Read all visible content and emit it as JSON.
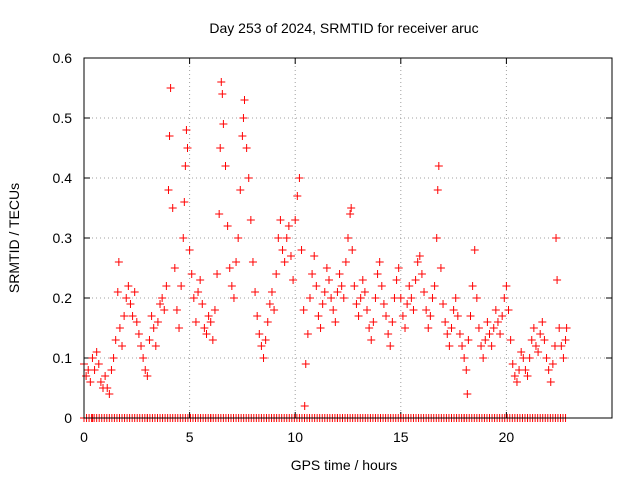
{
  "chart_data": {
    "type": "scatter",
    "title": "Day 253 of 2024, SRMTID for receiver aruc",
    "xlabel": "GPS time / hours",
    "ylabel": "SRMTID / TECUs",
    "xlim": [
      0,
      25
    ],
    "ylim": [
      0,
      0.6
    ],
    "xticks": [
      0,
      5,
      10,
      15,
      20
    ],
    "yticks": [
      0,
      0.1,
      0.2,
      0.3,
      0.4,
      0.5,
      0.6
    ],
    "xtick_labels": [
      "0",
      "5",
      "10",
      "15",
      "20"
    ],
    "ytick_labels": [
      "0",
      "0.1",
      "0.2",
      "0.3",
      "0.4",
      "0.5",
      "0.6"
    ],
    "grid": true,
    "marker": "+",
    "color": "#ff0000",
    "series": [
      {
        "name": "SRMTID",
        "points": [
          [
            0.0,
            0.09
          ],
          [
            0.1,
            0.07
          ],
          [
            0.2,
            0.08
          ],
          [
            0.3,
            0.06
          ],
          [
            0.4,
            0.1
          ],
          [
            0.5,
            0.08
          ],
          [
            0.6,
            0.11
          ],
          [
            0.7,
            0.09
          ],
          [
            0.8,
            0.06
          ],
          [
            0.9,
            0.05
          ],
          [
            1.0,
            0.07
          ],
          [
            1.1,
            0.05
          ],
          [
            1.2,
            0.04
          ],
          [
            1.3,
            0.08
          ],
          [
            1.4,
            0.1
          ],
          [
            1.5,
            0.13
          ],
          [
            1.6,
            0.21
          ],
          [
            1.65,
            0.26
          ],
          [
            1.7,
            0.15
          ],
          [
            1.8,
            0.12
          ],
          [
            1.9,
            0.17
          ],
          [
            2.0,
            0.2
          ],
          [
            2.1,
            0.22
          ],
          [
            2.2,
            0.19
          ],
          [
            2.3,
            0.17
          ],
          [
            2.4,
            0.21
          ],
          [
            2.5,
            0.16
          ],
          [
            2.6,
            0.14
          ],
          [
            2.7,
            0.12
          ],
          [
            2.8,
            0.1
          ],
          [
            2.9,
            0.08
          ],
          [
            3.0,
            0.07
          ],
          [
            3.1,
            0.13
          ],
          [
            3.2,
            0.17
          ],
          [
            3.3,
            0.15
          ],
          [
            3.4,
            0.12
          ],
          [
            3.5,
            0.16
          ],
          [
            3.6,
            0.19
          ],
          [
            3.7,
            0.2
          ],
          [
            3.8,
            0.18
          ],
          [
            3.9,
            0.22
          ],
          [
            4.0,
            0.38
          ],
          [
            4.05,
            0.47
          ],
          [
            4.1,
            0.55
          ],
          [
            4.2,
            0.35
          ],
          [
            4.3,
            0.25
          ],
          [
            4.4,
            0.18
          ],
          [
            4.5,
            0.15
          ],
          [
            4.6,
            0.22
          ],
          [
            4.7,
            0.3
          ],
          [
            4.75,
            0.36
          ],
          [
            4.8,
            0.42
          ],
          [
            4.85,
            0.48
          ],
          [
            4.9,
            0.45
          ],
          [
            5.0,
            0.28
          ],
          [
            5.1,
            0.24
          ],
          [
            5.2,
            0.2
          ],
          [
            5.3,
            0.16
          ],
          [
            5.4,
            0.21
          ],
          [
            5.5,
            0.23
          ],
          [
            5.6,
            0.19
          ],
          [
            5.7,
            0.15
          ],
          [
            5.8,
            0.14
          ],
          [
            5.9,
            0.17
          ],
          [
            6.0,
            0.16
          ],
          [
            6.1,
            0.13
          ],
          [
            6.2,
            0.18
          ],
          [
            6.3,
            0.24
          ],
          [
            6.4,
            0.34
          ],
          [
            6.45,
            0.45
          ],
          [
            6.5,
            0.56
          ],
          [
            6.55,
            0.54
          ],
          [
            6.6,
            0.49
          ],
          [
            6.7,
            0.42
          ],
          [
            6.8,
            0.32
          ],
          [
            6.9,
            0.25
          ],
          [
            7.0,
            0.22
          ],
          [
            7.1,
            0.2
          ],
          [
            7.2,
            0.26
          ],
          [
            7.3,
            0.3
          ],
          [
            7.4,
            0.38
          ],
          [
            7.5,
            0.47
          ],
          [
            7.55,
            0.5
          ],
          [
            7.6,
            0.53
          ],
          [
            7.7,
            0.45
          ],
          [
            7.8,
            0.4
          ],
          [
            7.9,
            0.33
          ],
          [
            8.0,
            0.26
          ],
          [
            8.1,
            0.21
          ],
          [
            8.2,
            0.17
          ],
          [
            8.3,
            0.14
          ],
          [
            8.4,
            0.12
          ],
          [
            8.5,
            0.1
          ],
          [
            8.6,
            0.13
          ],
          [
            8.7,
            0.16
          ],
          [
            8.8,
            0.19
          ],
          [
            8.9,
            0.21
          ],
          [
            9.0,
            0.18
          ],
          [
            9.1,
            0.24
          ],
          [
            9.2,
            0.3
          ],
          [
            9.3,
            0.33
          ],
          [
            9.4,
            0.28
          ],
          [
            9.5,
            0.26
          ],
          [
            9.6,
            0.3
          ],
          [
            9.7,
            0.32
          ],
          [
            9.8,
            0.27
          ],
          [
            9.9,
            0.23
          ],
          [
            10.0,
            0.33
          ],
          [
            10.1,
            0.37
          ],
          [
            10.2,
            0.4
          ],
          [
            10.3,
            0.28
          ],
          [
            10.4,
            0.18
          ],
          [
            10.45,
            0.02
          ],
          [
            10.5,
            0.09
          ],
          [
            10.6,
            0.14
          ],
          [
            10.7,
            0.2
          ],
          [
            10.8,
            0.24
          ],
          [
            10.9,
            0.27
          ],
          [
            11.0,
            0.22
          ],
          [
            11.1,
            0.17
          ],
          [
            11.2,
            0.15
          ],
          [
            11.3,
            0.19
          ],
          [
            11.4,
            0.21
          ],
          [
            11.5,
            0.25
          ],
          [
            11.6,
            0.23
          ],
          [
            11.7,
            0.2
          ],
          [
            11.8,
            0.18
          ],
          [
            11.9,
            0.16
          ],
          [
            12.0,
            0.21
          ],
          [
            12.1,
            0.24
          ],
          [
            12.2,
            0.22
          ],
          [
            12.3,
            0.2
          ],
          [
            12.4,
            0.26
          ],
          [
            12.5,
            0.3
          ],
          [
            12.6,
            0.34
          ],
          [
            12.65,
            0.35
          ],
          [
            12.7,
            0.28
          ],
          [
            12.8,
            0.22
          ],
          [
            12.9,
            0.19
          ],
          [
            13.0,
            0.17
          ],
          [
            13.1,
            0.2
          ],
          [
            13.2,
            0.23
          ],
          [
            13.3,
            0.21
          ],
          [
            13.4,
            0.18
          ],
          [
            13.5,
            0.15
          ],
          [
            13.6,
            0.13
          ],
          [
            13.7,
            0.16
          ],
          [
            13.8,
            0.2
          ],
          [
            13.9,
            0.24
          ],
          [
            14.0,
            0.26
          ],
          [
            14.1,
            0.22
          ],
          [
            14.2,
            0.19
          ],
          [
            14.3,
            0.17
          ],
          [
            14.4,
            0.14
          ],
          [
            14.5,
            0.12
          ],
          [
            14.6,
            0.16
          ],
          [
            14.7,
            0.2
          ],
          [
            14.8,
            0.23
          ],
          [
            14.9,
            0.25
          ],
          [
            15.0,
            0.2
          ],
          [
            15.1,
            0.17
          ],
          [
            15.2,
            0.15
          ],
          [
            15.3,
            0.19
          ],
          [
            15.4,
            0.22
          ],
          [
            15.5,
            0.2
          ],
          [
            15.6,
            0.18
          ],
          [
            15.7,
            0.23
          ],
          [
            15.8,
            0.26
          ],
          [
            15.9,
            0.27
          ],
          [
            16.0,
            0.24
          ],
          [
            16.1,
            0.21
          ],
          [
            16.2,
            0.18
          ],
          [
            16.3,
            0.15
          ],
          [
            16.4,
            0.17
          ],
          [
            16.5,
            0.2
          ],
          [
            16.6,
            0.22
          ],
          [
            16.7,
            0.3
          ],
          [
            16.75,
            0.38
          ],
          [
            16.8,
            0.42
          ],
          [
            16.9,
            0.25
          ],
          [
            17.0,
            0.19
          ],
          [
            17.1,
            0.16
          ],
          [
            17.2,
            0.14
          ],
          [
            17.3,
            0.12
          ],
          [
            17.4,
            0.15
          ],
          [
            17.5,
            0.18
          ],
          [
            17.6,
            0.2
          ],
          [
            17.7,
            0.17
          ],
          [
            17.8,
            0.14
          ],
          [
            17.9,
            0.12
          ],
          [
            18.0,
            0.1
          ],
          [
            18.1,
            0.08
          ],
          [
            18.15,
            0.04
          ],
          [
            18.2,
            0.13
          ],
          [
            18.3,
            0.17
          ],
          [
            18.4,
            0.22
          ],
          [
            18.5,
            0.28
          ],
          [
            18.6,
            0.2
          ],
          [
            18.7,
            0.15
          ],
          [
            18.8,
            0.12
          ],
          [
            18.9,
            0.1
          ],
          [
            19.0,
            0.13
          ],
          [
            19.1,
            0.16
          ],
          [
            19.2,
            0.14
          ],
          [
            19.3,
            0.12
          ],
          [
            19.4,
            0.15
          ],
          [
            19.5,
            0.18
          ],
          [
            19.6,
            0.16
          ],
          [
            19.7,
            0.14
          ],
          [
            19.8,
            0.17
          ],
          [
            19.9,
            0.2
          ],
          [
            20.0,
            0.22
          ],
          [
            20.1,
            0.18
          ],
          [
            20.2,
            0.13
          ],
          [
            20.3,
            0.09
          ],
          [
            20.4,
            0.07
          ],
          [
            20.5,
            0.06
          ],
          [
            20.6,
            0.08
          ],
          [
            20.7,
            0.11
          ],
          [
            20.8,
            0.1
          ],
          [
            20.9,
            0.08
          ],
          [
            21.0,
            0.07
          ],
          [
            21.1,
            0.1
          ],
          [
            21.2,
            0.13
          ],
          [
            21.3,
            0.15
          ],
          [
            21.4,
            0.12
          ],
          [
            21.5,
            0.11
          ],
          [
            21.6,
            0.14
          ],
          [
            21.7,
            0.16
          ],
          [
            21.8,
            0.13
          ],
          [
            21.9,
            0.1
          ],
          [
            22.0,
            0.08
          ],
          [
            22.1,
            0.06
          ],
          [
            22.2,
            0.09
          ],
          [
            22.3,
            0.12
          ],
          [
            22.35,
            0.3
          ],
          [
            22.4,
            0.23
          ],
          [
            22.5,
            0.15
          ],
          [
            22.6,
            0.12
          ],
          [
            22.7,
            0.1
          ],
          [
            22.8,
            0.13
          ],
          [
            22.85,
            0.15
          ],
          [
            0.4,
            0.0
          ],
          [
            3.0,
            0.0
          ],
          [
            6.0,
            0.0
          ],
          [
            9.0,
            0.0
          ],
          [
            12.0,
            0.0
          ],
          [
            15.0,
            0.0
          ],
          [
            18.0,
            0.0
          ],
          [
            21.0,
            0.0
          ]
        ]
      }
    ],
    "zero_markers_x_range": [
      0,
      22.8
    ]
  }
}
